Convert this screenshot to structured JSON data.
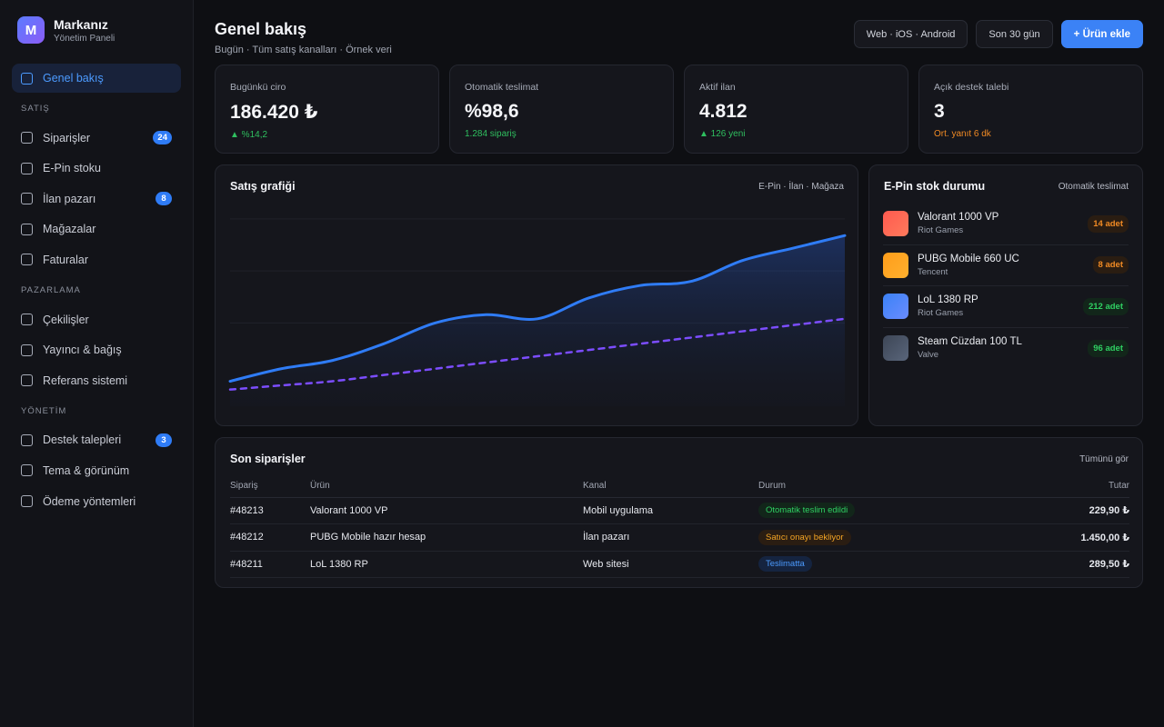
{
  "brand": {
    "name": "Markanız",
    "subtitle": "Yönetim Paneli",
    "logo_letter": "M"
  },
  "sidebar": {
    "items": [
      {
        "label": "Genel bakış",
        "active": true
      },
      {
        "section": "SATIŞ"
      },
      {
        "label": "Siparişler",
        "badge": "24"
      },
      {
        "label": "E-Pin stoku"
      },
      {
        "label": "İlan pazarı",
        "badge": "8"
      },
      {
        "label": "Mağazalar"
      },
      {
        "label": "Faturalar"
      },
      {
        "section": "PAZARLAMA"
      },
      {
        "label": "Çekilişler"
      },
      {
        "label": "Yayıncı & bağış"
      },
      {
        "label": "Referans sistemi"
      },
      {
        "section": "YÖNETİM"
      },
      {
        "label": "Destek talepleri",
        "badge": "3"
      },
      {
        "label": "Tema & görünüm"
      },
      {
        "label": "Ödeme yöntemleri"
      }
    ]
  },
  "header": {
    "title": "Genel bakış",
    "subtitle": "Bugün · Tüm satış kanalları · Örnek veri",
    "platforms": "Web · iOS · Android",
    "period": "Son 30 gün",
    "add_product": "+ Ürün ekle"
  },
  "stats": [
    {
      "label": "Bugünkü ciro",
      "value": "186.420 ₺",
      "note": "▲ %14,2",
      "note_color": "green"
    },
    {
      "label": "Otomatik teslimat",
      "value": "%98,6",
      "note": "1.284 sipariş",
      "note_color": "green"
    },
    {
      "label": "Aktif ilan",
      "value": "4.812",
      "note": "▲ 126 yeni",
      "note_color": "green"
    },
    {
      "label": "Açık destek talebi",
      "value": "3",
      "note": "Ort. yanıt 6 dk",
      "note_color": "orange"
    }
  ],
  "sales_chart": {
    "title": "Satış grafiği",
    "legend": "E-Pin · İlan · Mağaza"
  },
  "chart_data": {
    "type": "line",
    "title": "Satış grafiği",
    "x": [
      0,
      1,
      2,
      3,
      4,
      5,
      6,
      7,
      8,
      9,
      10,
      11,
      12
    ],
    "series": [
      {
        "values": [
          12,
          18,
          22,
          30,
          40,
          44,
          42,
          52,
          58,
          60,
          70,
          76,
          82
        ],
        "color": "#2f7cf6"
      },
      {
        "values": [
          8,
          10,
          12,
          15,
          18,
          21,
          24,
          27,
          30,
          33,
          36,
          39,
          42
        ],
        "color": "#7c4dff",
        "dashed": true
      }
    ],
    "ylim": [
      0,
      100
    ],
    "grid": true,
    "legend": "top-right"
  },
  "stock": {
    "title": "E-Pin stok durumu",
    "meta": "Otomatik teslimat",
    "items": [
      {
        "name": "Valorant 1000 VP",
        "vendor": "Riot Games",
        "badge": "14 adet",
        "status": "warn",
        "color1": "#ff5a4f",
        "color2": "#ff7a5c"
      },
      {
        "name": "PUBG Mobile 660 UC",
        "vendor": "Tencent",
        "badge": "8 adet",
        "status": "warn",
        "color1": "#ff9d1a",
        "color2": "#ffb02e"
      },
      {
        "name": "LoL 1380 RP",
        "vendor": "Riot Games",
        "badge": "212 adet",
        "status": "ok",
        "color1": "#3b82f6",
        "color2": "#6a8cff"
      },
      {
        "name": "Steam Cüzdan 100 TL",
        "vendor": "Valve",
        "badge": "96 adet",
        "status": "ok",
        "color1": "#3d4656",
        "color2": "#59657a"
      }
    ]
  },
  "orders": {
    "title": "Son siparişler",
    "see_all": "Tümünü gör",
    "columns": [
      "Sipariş",
      "Ürün",
      "Kanal",
      "Durum",
      "Tutar"
    ],
    "rows": [
      {
        "id": "#48213",
        "product": "Valorant 1000 VP",
        "channel": "Mobil uygulama",
        "status": "Otomatik teslim edildi",
        "status_type": "green",
        "amount": "229,90 ₺"
      },
      {
        "id": "#48212",
        "product": "PUBG Mobile hazır hesap",
        "channel": "İlan pazarı",
        "status": "Satıcı onayı bekliyor",
        "status_type": "orange",
        "amount": "1.450,00 ₺"
      },
      {
        "id": "#48211",
        "product": "LoL 1380 RP",
        "channel": "Web sitesi",
        "status": "Teslimatta",
        "status_type": "blue",
        "amount": "289,50 ₺"
      }
    ]
  }
}
